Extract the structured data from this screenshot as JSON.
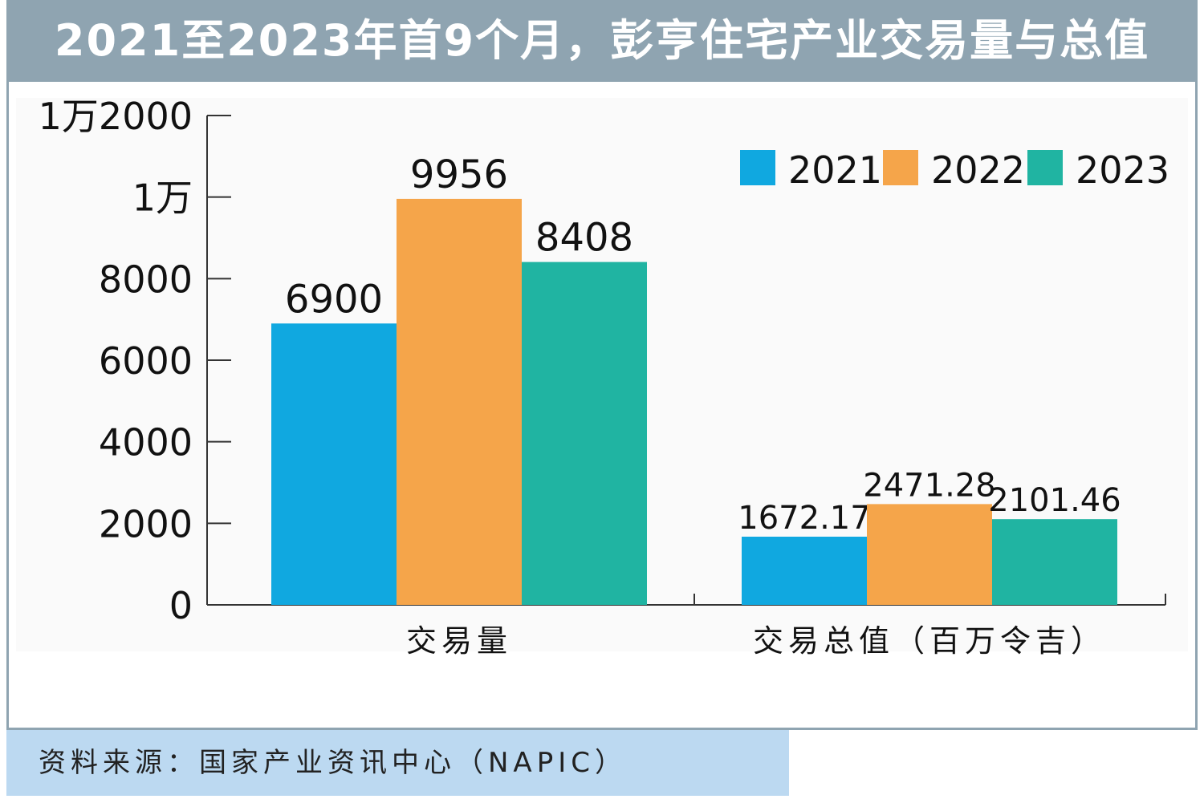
{
  "title": "2021至2023年首9个月，彭亨住宅产业交易量与总值",
  "source": "资料来源：国家产业资讯中心（NAPIC）",
  "colors": {
    "header": "#8fa4b1",
    "footer": "#bcd9f1",
    "axis": "#333333",
    "series": [
      "#10a8e0",
      "#f5a54a",
      "#20b4a2"
    ]
  },
  "chart_data": {
    "type": "bar",
    "categories": [
      "交易量",
      "交易总值（百万令吉）"
    ],
    "series": [
      {
        "name": "2021",
        "values": [
          6900,
          1672.17
        ],
        "labels": [
          "6900",
          "1672.17"
        ]
      },
      {
        "name": "2022",
        "values": [
          9956,
          2471.28
        ],
        "labels": [
          "9956",
          "2471.28"
        ]
      },
      {
        "name": "2023",
        "values": [
          8408,
          2101.46
        ],
        "labels": [
          "8408",
          "2101.46"
        ]
      }
    ],
    "ylim": [
      0,
      12000
    ],
    "yticks": [
      {
        "value": 0,
        "label": "0"
      },
      {
        "value": 2000,
        "label": "2000"
      },
      {
        "value": 4000,
        "label": "4000"
      },
      {
        "value": 6000,
        "label": "6000"
      },
      {
        "value": 8000,
        "label": "8000"
      },
      {
        "value": 10000,
        "label": "1万"
      },
      {
        "value": 12000,
        "label": "1万2000"
      }
    ],
    "legend_position": "top-right",
    "grid": false
  }
}
